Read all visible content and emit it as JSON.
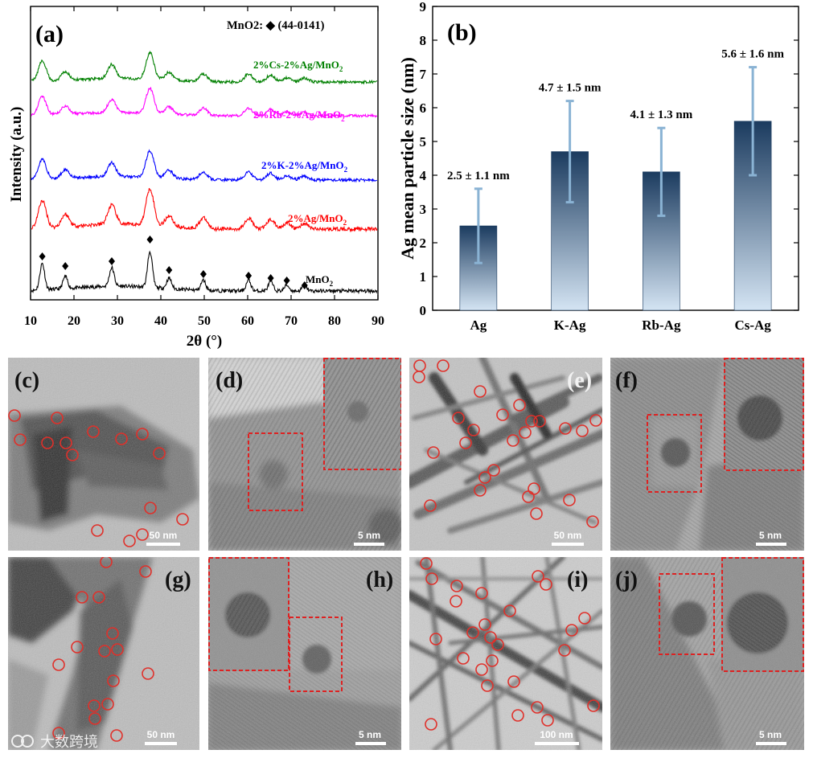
{
  "chart_data": [
    {
      "type": "line",
      "panel": "(a)",
      "title": "",
      "xlabel": "2θ (°)",
      "ylabel": "Intensity (a.u.)",
      "xlim": [
        10,
        90
      ],
      "xticks": [
        10,
        20,
        30,
        40,
        50,
        60,
        70,
        80,
        90
      ],
      "legend_text": "MnO2: ◆ (44-0141)",
      "peaks_2theta": [
        12.7,
        18.0,
        28.7,
        37.5,
        41.9,
        49.8,
        60.2,
        65.3,
        69.0,
        73.1
      ],
      "peak_heights": [
        1.0,
        0.45,
        0.7,
        1.35,
        0.4,
        0.38,
        0.4,
        0.35,
        0.22,
        0.2
      ],
      "series": [
        {
          "name": "MnO2",
          "label_main": "MnO",
          "label_sub": "2",
          "color": "#000000"
        },
        {
          "name": "2%Ag/MnO2",
          "label_main": "2%Ag/MnO",
          "label_sub": "2",
          "color": "#ff0000"
        },
        {
          "name": "2%K-2%Ag/MnO2",
          "label_main": "2%K-2%Ag/MnO",
          "label_sub": "2",
          "color": "#0000ff"
        },
        {
          "name": "2%Rb-2%Ag/MnO2",
          "label_main": "2%Rb-2%Ag/MnO",
          "label_sub": "2",
          "color": "#ff00ff"
        },
        {
          "name": "2%Cs-2%Ag/MnO2",
          "label_main": "2%Cs-2%Ag/MnO",
          "label_sub": "2",
          "color": "#008000"
        }
      ]
    },
    {
      "type": "bar",
      "panel": "(b)",
      "title": "",
      "xlabel": "",
      "ylabel": "Ag mean particle size (nm)",
      "ylim": [
        0,
        9
      ],
      "yticks": [
        0,
        1,
        2,
        3,
        4,
        5,
        6,
        7,
        8,
        9
      ],
      "categories": [
        "Ag",
        "K-Ag",
        "Rb-Ag",
        "Cs-Ag"
      ],
      "values": [
        2.5,
        4.7,
        4.1,
        5.6
      ],
      "errors": [
        1.1,
        1.5,
        1.3,
        1.6
      ],
      "data_labels": [
        "2.5 ± 1.1 nm",
        "4.7 ± 1.5 nm",
        "4.1 ± 1.3 nm",
        "5.6 ± 1.6 nm"
      ]
    }
  ],
  "tem_panels": [
    {
      "label": "(c)",
      "scale": "50 nm",
      "label_color": "#111111"
    },
    {
      "label": "(d)",
      "scale": "5 nm",
      "label_color": "#111111"
    },
    {
      "label": "(e)",
      "scale": "50 nm",
      "label_color": "#f2f2f2"
    },
    {
      "label": "(f)",
      "scale": "5 nm",
      "label_color": "#111111"
    },
    {
      "label": "(g)",
      "scale": "50 nm",
      "label_color": "#111111"
    },
    {
      "label": "(h)",
      "scale": "5 nm",
      "label_color": "#111111"
    },
    {
      "label": "(i)",
      "scale": "100 nm",
      "label_color": "#111111"
    },
    {
      "label": "(j)",
      "scale": "5 nm",
      "label_color": "#111111"
    }
  ],
  "watermark": "大数跨境",
  "colors": {
    "bar_top": "#1b3b5f",
    "bar_bottom": "#d4e4f3",
    "error_bar": "#8ab3d4",
    "circle": "#e0302a",
    "dashed_box": "#dd2222"
  }
}
